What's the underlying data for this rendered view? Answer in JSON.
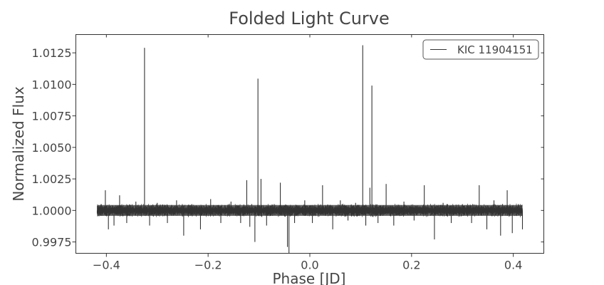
{
  "chart_data": {
    "type": "line",
    "title": "Folded Light Curve",
    "xlabel": "Phase [JD]",
    "ylabel": "Normalized Flux",
    "xlim": [
      -0.46,
      0.46
    ],
    "ylim": [
      0.9966,
      1.01395
    ],
    "xticks": [
      -0.4,
      -0.2,
      0.0,
      0.2,
      0.4
    ],
    "xtick_labels": [
      "−0.4",
      "−0.2",
      "0.0",
      "0.2",
      "0.4"
    ],
    "yticks": [
      0.9975,
      1.0,
      1.0025,
      1.005,
      1.0075,
      1.01,
      1.0125
    ],
    "ytick_labels": [
      "0.9975",
      "1.0000",
      "1.0025",
      "1.0050",
      "1.0075",
      "1.0100",
      "1.0125"
    ],
    "legend_position": "top-right",
    "grid": false,
    "series": [
      {
        "name": "KIC 11904151",
        "color": "#333333",
        "phase_range": [
          -0.418,
          0.418
        ],
        "baseline": 1.0,
        "noise_band": [
          0.99945,
          1.00055
        ],
        "points": [
          [
            -0.418,
            0.9998
          ],
          [
            -0.41,
            1.0005
          ],
          [
            -0.402,
            1.0016
          ],
          [
            -0.396,
            0.9985
          ],
          [
            -0.385,
            0.9988
          ],
          [
            -0.374,
            1.0012
          ],
          [
            -0.36,
            0.999
          ],
          [
            -0.342,
            1.0007
          ],
          [
            -0.325,
            1.0129
          ],
          [
            -0.315,
            0.9988
          ],
          [
            -0.3,
            1.0006
          ],
          [
            -0.28,
            0.999
          ],
          [
            -0.262,
            1.0008
          ],
          [
            -0.248,
            0.998
          ],
          [
            -0.232,
            1.0005
          ],
          [
            -0.215,
            0.9985
          ],
          [
            -0.195,
            1.0009
          ],
          [
            -0.175,
            0.999
          ],
          [
            -0.155,
            1.0007
          ],
          [
            -0.136,
            0.999
          ],
          [
            -0.124,
            1.0024
          ],
          [
            -0.118,
            0.9987
          ],
          [
            -0.108,
            0.9975
          ],
          [
            -0.102,
            1.01045
          ],
          [
            -0.096,
            1.0025
          ],
          [
            -0.085,
            0.9988
          ],
          [
            -0.07,
            1.0005
          ],
          [
            -0.058,
            1.0022
          ],
          [
            -0.044,
            0.9971
          ],
          [
            -0.041,
            0.9966
          ],
          [
            -0.03,
            0.999
          ],
          [
            -0.01,
            1.0008
          ],
          [
            0.005,
            0.999
          ],
          [
            0.025,
            1.002
          ],
          [
            0.045,
            0.9985
          ],
          [
            0.06,
            1.0008
          ],
          [
            0.075,
            0.9992
          ],
          [
            0.09,
            1.0006
          ],
          [
            0.104,
            1.0131
          ],
          [
            0.11,
            0.9988
          ],
          [
            0.118,
            1.0018
          ],
          [
            0.122,
            1.0099
          ],
          [
            0.134,
            0.999
          ],
          [
            0.15,
            1.0021
          ],
          [
            0.165,
            0.9988
          ],
          [
            0.185,
            1.0007
          ],
          [
            0.205,
            0.9992
          ],
          [
            0.225,
            1.002
          ],
          [
            0.245,
            0.9977
          ],
          [
            0.262,
            1.0006
          ],
          [
            0.278,
            0.999
          ],
          [
            0.3,
            1.0005
          ],
          [
            0.318,
            0.999
          ],
          [
            0.333,
            1.002
          ],
          [
            0.348,
            0.9985
          ],
          [
            0.362,
            1.0008
          ],
          [
            0.375,
            0.998
          ],
          [
            0.388,
            1.0016
          ],
          [
            0.398,
            0.9982
          ],
          [
            0.41,
            1.0005
          ],
          [
            0.418,
            0.9985
          ]
        ]
      }
    ]
  }
}
